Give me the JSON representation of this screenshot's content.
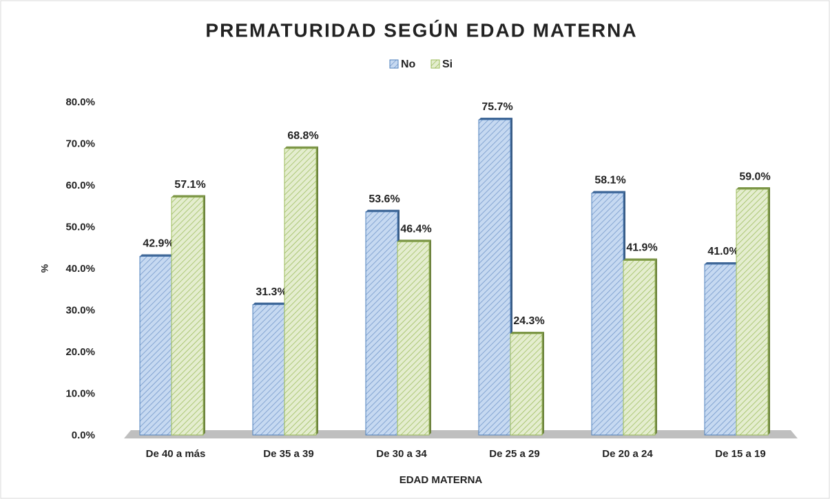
{
  "chart_data": {
    "type": "bar",
    "title": "PREMATURIDAD SEGÚN EDAD MATERNA",
    "x_label": "EDAD MATERNA",
    "y_label": "%",
    "categories": [
      "De 40 a más",
      "De 35 a 39",
      "De 30 a 34",
      "De 25 a 29",
      "De 20 a 24",
      "De 15 a 19"
    ],
    "series": [
      {
        "name": "No",
        "color": "#4f81bd",
        "values": [
          42.9,
          31.3,
          53.6,
          75.7,
          58.1,
          41.0
        ],
        "value_labels": [
          "42.9%",
          "31.3%",
          "53.6%",
          "75.7%",
          "58.1%",
          "41.0%"
        ]
      },
      {
        "name": "Si",
        "color": "#9bbb59",
        "values": [
          57.1,
          68.8,
          46.4,
          24.3,
          41.9,
          59.0
        ],
        "value_labels": [
          "57.1%",
          "68.8%",
          "46.4%",
          "24.3%",
          "41.9%",
          "59.0%"
        ]
      }
    ],
    "ylim": [
      0,
      80
    ],
    "yticks": [
      {
        "value": 0,
        "label": "0.0%"
      },
      {
        "value": 10,
        "label": "10.0%"
      },
      {
        "value": 20,
        "label": "20.0%"
      },
      {
        "value": 30,
        "label": "30.0%"
      },
      {
        "value": 40,
        "label": "40.0%"
      },
      {
        "value": 50,
        "label": "50.0%"
      },
      {
        "value": 60,
        "label": "60.0%"
      },
      {
        "value": 70,
        "label": "70.0%"
      },
      {
        "value": 80,
        "label": "80.0%"
      }
    ],
    "legend": "top",
    "grid": false
  }
}
